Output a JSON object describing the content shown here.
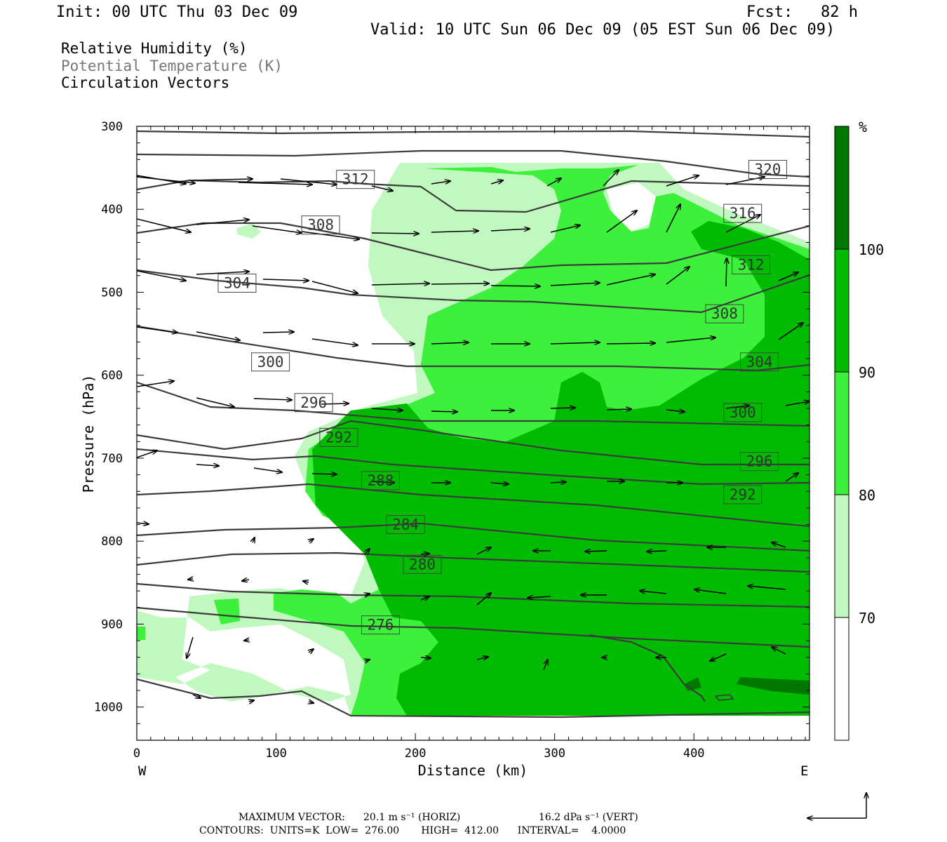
{
  "header": {
    "init": "Init: 00 UTC Thu 03 Dec 09",
    "fcst": "Fcst:   82 h",
    "valid": "Valid: 10 UTC Sun 06 Dec 09 (05 EST Sun 06 Dec 09)"
  },
  "fields": [
    {
      "label": "Relative Humidity (%)",
      "color": "#000000"
    },
    {
      "label": "Potential Temperature (K)",
      "color": "#777777"
    },
    {
      "label": "Circulation Vectors",
      "color": "#000000"
    }
  ],
  "footer": {
    "max_vector_label": "MAXIMUM VECTOR:",
    "max_vector_horiz": "20.1 m s⁻¹ (HORIZ)",
    "max_vector_vert": "16.2 dPa s⁻¹ (VERT)",
    "contours": "CONTOURS:  UNITS=K  LOW=  276.00       HIGH=  412.00      INTERVAL=    4.0000"
  },
  "chart_data": {
    "type": "heatmap",
    "description_fields": [
      "Relative Humidity (%)",
      "Potential Temperature (K)",
      "Circulation Vectors"
    ],
    "xlabel": "Distance (km)",
    "ylabel": "Pressure (hPa)",
    "x_ticks": [
      0,
      100,
      200,
      300,
      400
    ],
    "y_ticks": [
      300,
      400,
      500,
      600,
      700,
      800,
      900,
      1000
    ],
    "xlim": [
      0,
      483
    ],
    "ylim": [
      300,
      1040
    ],
    "y_inverted": true,
    "x_end_labels": {
      "left": "W",
      "right": "E"
    },
    "colorbar": {
      "unit": "%",
      "levels": [
        70,
        80,
        90,
        100
      ],
      "colors": [
        "#ffffff",
        "#c0f8c0",
        "#3cf03c",
        "#00bb00",
        "#007800"
      ]
    },
    "theta_contours": [
      {
        "value": 276,
        "label_x": 175,
        "label_p": 901
      },
      {
        "value": 280,
        "label_x": 205,
        "label_p": 828
      },
      {
        "value": 284,
        "label_x": 193,
        "label_p": 780
      },
      {
        "value": 288,
        "label_x": 175,
        "label_p": 727
      },
      {
        "value": 292,
        "label_x": 145,
        "label_p": 675
      },
      {
        "value": 292,
        "label_x": 435,
        "label_p": 744
      },
      {
        "value": 296,
        "label_x": 127,
        "label_p": 633
      },
      {
        "value": 296,
        "label_x": 447,
        "label_p": 704
      },
      {
        "value": 300,
        "label_x": 96,
        "label_p": 584
      },
      {
        "value": 300,
        "label_x": 435,
        "label_p": 645
      },
      {
        "value": 304,
        "label_x": 72,
        "label_p": 489
      },
      {
        "value": 304,
        "label_x": 447,
        "label_p": 584
      },
      {
        "value": 308,
        "label_x": 132,
        "label_p": 419
      },
      {
        "value": 308,
        "label_x": 422,
        "label_p": 526
      },
      {
        "value": 312,
        "label_x": 157,
        "label_p": 364
      },
      {
        "value": 312,
        "label_x": 441,
        "label_p": 467
      },
      {
        "value": 316,
        "label_x": 435,
        "label_p": 405
      },
      {
        "value": 320,
        "label_x": 453,
        "label_p": 352
      }
    ],
    "max_vector": {
      "horiz": 20.1,
      "horiz_unit": "m s-1",
      "vert": 16.2,
      "vert_unit": "dPa s-1"
    },
    "contour_stats": {
      "units": "K",
      "low": 276.0,
      "high": 412.0,
      "interval": 4.0
    }
  }
}
